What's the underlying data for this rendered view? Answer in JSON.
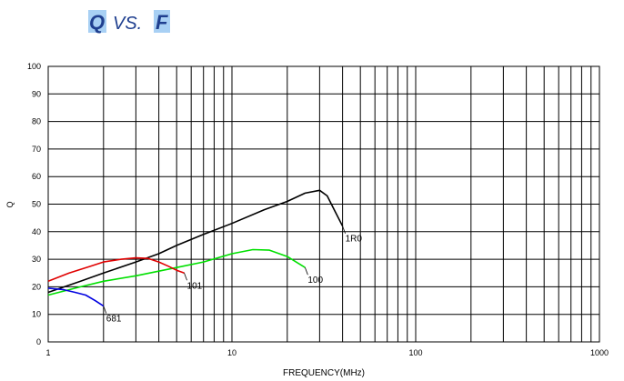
{
  "chart_data": {
    "type": "line",
    "title_parts": [
      "Q",
      "VS.",
      "F"
    ],
    "xlabel": "FREQUENCY(MHz)",
    "ylabel": "Q",
    "x_scale": "log",
    "xlim": [
      1,
      1000
    ],
    "ylim": [
      0,
      100
    ],
    "x_ticks": [
      1,
      10,
      100,
      1000
    ],
    "y_ticks": [
      0,
      10,
      20,
      30,
      40,
      50,
      60,
      70,
      80,
      90,
      100
    ],
    "grid": true,
    "series": [
      {
        "name": "1R0",
        "color": "#000000",
        "x": [
          1,
          1.5,
          2,
          3,
          4,
          5,
          7,
          10,
          15,
          20,
          25,
          30,
          33,
          36,
          40
        ],
        "y": [
          18,
          22,
          25,
          29,
          32,
          35,
          39,
          43,
          48,
          51,
          54,
          55,
          53,
          48,
          42
        ]
      },
      {
        "name": "100",
        "color": "#00e000",
        "x": [
          1,
          1.5,
          2,
          3,
          5,
          7,
          10,
          13,
          16,
          20,
          25
        ],
        "y": [
          17,
          20,
          22,
          24,
          27,
          29,
          32,
          33.5,
          33.3,
          31,
          27
        ]
      },
      {
        "name": "101",
        "color": "#e00000",
        "x": [
          1,
          1.3,
          1.7,
          2,
          2.5,
          3,
          3.5,
          4,
          4.5,
          5,
          5.5
        ],
        "y": [
          22,
          25,
          27.5,
          29,
          30,
          30.5,
          30.3,
          29,
          27.5,
          26,
          25
        ]
      },
      {
        "name": "681",
        "color": "#0000e0",
        "x": [
          1,
          1.2,
          1.4,
          1.6,
          1.8,
          2
        ],
        "y": [
          19.5,
          19,
          18,
          17,
          15,
          13
        ]
      }
    ]
  }
}
